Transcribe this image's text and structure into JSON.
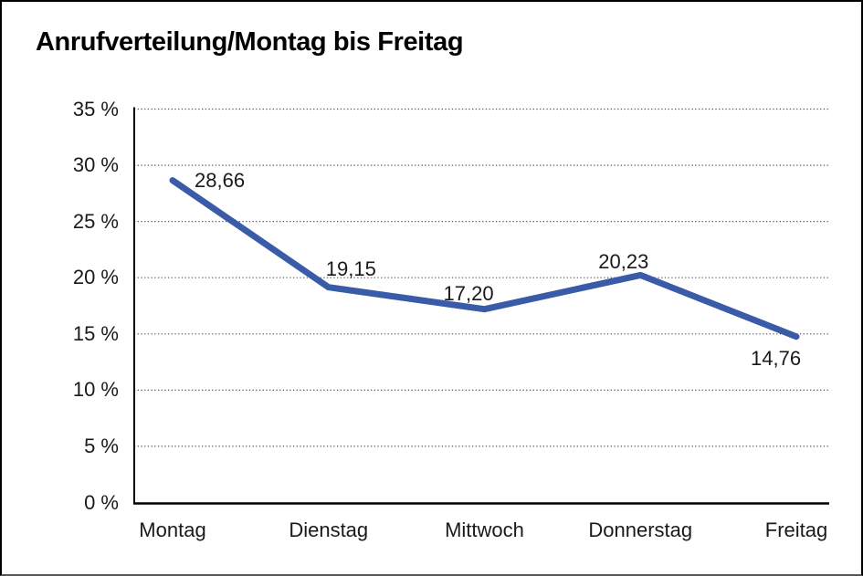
{
  "title": "Anrufverteilung/Montag bis Freitag",
  "chart_data": {
    "type": "line",
    "title": "Anrufverteilung/Montag bis Freitag",
    "categories": [
      "Montag",
      "Dienstag",
      "Mittwoch",
      "Donnerstag",
      "Freitag"
    ],
    "values": [
      28.66,
      19.15,
      17.2,
      20.23,
      14.76
    ],
    "value_labels": [
      "28,66",
      "19,15",
      "17,20",
      "20,23",
      "14,76"
    ],
    "series_name": "Anrufverteilung",
    "xlabel": "",
    "ylabel": "",
    "ylim": [
      0,
      35
    ],
    "y_step": 5,
    "y_tick_labels": [
      "0 %",
      "5 %",
      "10 %",
      "15 %",
      "20 %",
      "25 %",
      "30 %",
      "35 %"
    ],
    "grid": "horizontal-dotted",
    "legend": "none",
    "line_color": "#3A5BA7",
    "grid_color": "#555555",
    "axis_color": "#000000",
    "text_color": "#1a1a1a"
  }
}
